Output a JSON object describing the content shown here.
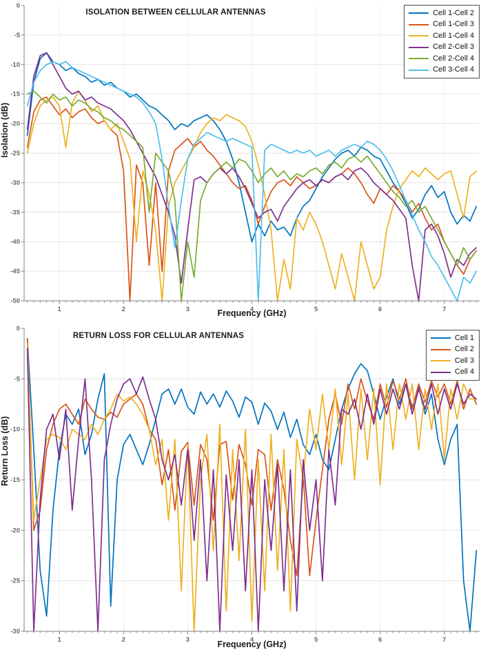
{
  "figure": {
    "background": "#ffffff",
    "axis_color": "#808080",
    "tick_label_color": "#666666",
    "grid_color_h": "#e3e3e3",
    "grid_color_v": "#ededed"
  },
  "chart_data": [
    {
      "type": "line",
      "title": "ISOLATION BETWEEN CELLULAR ANTENNAS",
      "xlabel": "Frequency (GHz)",
      "ylabel": "Isolation (dB)",
      "xlim": [
        0.45,
        7.55
      ],
      "ylim": [
        -50,
        0
      ],
      "xticks": [
        1,
        2,
        3,
        4,
        5,
        6,
        7
      ],
      "yticks": [
        0,
        -5,
        -10,
        -15,
        -20,
        -25,
        -30,
        -35,
        -40,
        -45,
        -50
      ],
      "minor_tick_step": 0.1,
      "grid": true,
      "legend_position": "top-right",
      "x_start": 0.5,
      "x_step": 0.1,
      "series": [
        {
          "name": "Cell 1-Cell 2",
          "color": "#0072BD",
          "values": [
            -22,
            -13,
            -9,
            -8,
            -9.5,
            -10,
            -11,
            -10.5,
            -11.5,
            -12,
            -13,
            -12.5,
            -13.5,
            -13,
            -14,
            -14.5,
            -15.5,
            -15,
            -16,
            -17,
            -17.5,
            -18.5,
            -19.5,
            -21,
            -20,
            -20.5,
            -19.5,
            -19,
            -18.5,
            -19.5,
            -21,
            -23,
            -26,
            -30,
            -35,
            -40,
            -37,
            -39,
            -36.5,
            -38,
            -37.5,
            -39,
            -36,
            -34,
            -33,
            -31,
            -29,
            -27.5,
            -26,
            -25,
            -24.5,
            -25.5,
            -24,
            -24.5,
            -25.5,
            -26,
            -28,
            -30,
            -31.5,
            -33.5,
            -36,
            -34.5,
            -32,
            -30.5,
            -32.5,
            -31.5,
            -35,
            -37,
            -35.5,
            -36.5,
            -34
          ]
        },
        {
          "name": "Cell 1-Cell 3",
          "color": "#D95319",
          "values": [
            -24,
            -18,
            -16,
            -15.5,
            -17,
            -18.5,
            -17.5,
            -19,
            -18,
            -17.5,
            -19,
            -20,
            -19.5,
            -21,
            -22,
            -28,
            -50,
            -27,
            -30,
            -44,
            -30,
            -45,
            -28,
            -24.5,
            -23.5,
            -22.5,
            -24,
            -23,
            -24.5,
            -25.5,
            -27,
            -28.5,
            -30,
            -31,
            -30.5,
            -33,
            -37,
            -34,
            -31.5,
            -30,
            -29.5,
            -30.5,
            -29,
            -30,
            -31,
            -30.5,
            -29.5,
            -30,
            -29,
            -28.5,
            -27.5,
            -28.5,
            -30,
            -32,
            -33.5,
            -31,
            -32,
            -30.5,
            -31.5,
            -33,
            -35,
            -33.5,
            -36,
            -38,
            -37,
            -40,
            -42,
            -44,
            -45.5,
            -43,
            -41.5
          ]
        },
        {
          "name": "Cell 1-Cell 4",
          "color": "#EDB120",
          "values": [
            -25,
            -20,
            -17,
            -16,
            -15.5,
            -17,
            -24,
            -16.5,
            -14.5,
            -16,
            -18,
            -17,
            -19.5,
            -21,
            -20,
            -23,
            -26,
            -40,
            -28,
            -32,
            -38,
            -50,
            -34,
            -30,
            -28,
            -26,
            -24,
            -21.5,
            -20,
            -19,
            -19.5,
            -18.5,
            -19,
            -19.5,
            -20.5,
            -23,
            -27,
            -32,
            -38,
            -50,
            -43,
            -48,
            -36,
            -38,
            -35,
            -37,
            -40,
            -44,
            -48,
            -42,
            -46,
            -50,
            -40,
            -44,
            -48,
            -46,
            -38,
            -34,
            -31,
            -29.5,
            -28,
            -29,
            -27.5,
            -28.5,
            -29.5,
            -28.5,
            -28,
            -32,
            -36,
            -29,
            -28
          ]
        },
        {
          "name": "Cell 2-Cell 3",
          "color": "#7E2F8E",
          "values": [
            -21,
            -12,
            -8.5,
            -8,
            -10,
            -12,
            -14,
            -15,
            -14.5,
            -16,
            -15.5,
            -16.5,
            -17,
            -17.5,
            -18.5,
            -19.5,
            -21,
            -23,
            -25,
            -27,
            -29,
            -32,
            -35,
            -39,
            -47,
            -38,
            -29.5,
            -29,
            -30,
            -28.5,
            -27.5,
            -28.5,
            -27.5,
            -29,
            -31,
            -33.5,
            -36,
            -35,
            -34.5,
            -36.5,
            -34,
            -32.5,
            -31,
            -30,
            -29.5,
            -30.5,
            -29.5,
            -30,
            -29,
            -28.5,
            -29.5,
            -28,
            -27.5,
            -28.5,
            -30,
            -31,
            -32,
            -33,
            -34.5,
            -36,
            -44,
            -50,
            -38,
            -37,
            -39,
            -42,
            -46,
            -43,
            -44,
            -42,
            -41
          ]
        },
        {
          "name": "Cell 2-Cell 4",
          "color": "#77AC30",
          "values": [
            -15,
            -14.5,
            -15.5,
            -16.5,
            -15,
            -16,
            -15.5,
            -17,
            -16,
            -16.5,
            -17.5,
            -18,
            -19,
            -19.5,
            -20.5,
            -21,
            -22,
            -23,
            -24,
            -35,
            -25,
            -26.5,
            -28,
            -33,
            -50,
            -40,
            -46,
            -33,
            -30,
            -28.5,
            -27.5,
            -26.5,
            -27.5,
            -26,
            -26.5,
            -28,
            -30,
            -28.5,
            -27.5,
            -29,
            -28,
            -29.5,
            -28.5,
            -29,
            -28,
            -27.5,
            -28.5,
            -27,
            -26.5,
            -27.5,
            -26,
            -25.5,
            -26.5,
            -25.5,
            -27,
            -28.5,
            -30,
            -31.5,
            -32.5,
            -34,
            -33,
            -35,
            -34,
            -36,
            -38,
            -40,
            -42,
            -44,
            -41,
            -43,
            -41.5
          ]
        },
        {
          "name": "Cell 3-Cell 4",
          "color": "#4DBEEE",
          "values": [
            -17,
            -13,
            -11,
            -10,
            -9.5,
            -10,
            -9.5,
            -10.5,
            -11,
            -11.5,
            -12,
            -12.5,
            -13,
            -13.5,
            -14,
            -14.5,
            -15,
            -15.5,
            -16.5,
            -18,
            -20,
            -26,
            -34,
            -41,
            -33,
            -26,
            -23.5,
            -22.5,
            -21.5,
            -22,
            -22.5,
            -23,
            -22.5,
            -23,
            -23.5,
            -24,
            -50,
            -24.5,
            -23.5,
            -24,
            -24.5,
            -25,
            -24.5,
            -25,
            -24.5,
            -25.5,
            -25,
            -24.5,
            -25.5,
            -24.5,
            -24,
            -23.5,
            -24,
            -23,
            -23.5,
            -24.5,
            -26,
            -28,
            -30.5,
            -33,
            -35.5,
            -38,
            -40,
            -42.5,
            -44,
            -46,
            -48,
            -50,
            -46,
            -47,
            -45
          ]
        }
      ]
    },
    {
      "type": "line",
      "title": "RETURN LOSS FOR CELLULAR ANTENNAS",
      "xlabel": "Frequency (GHz)",
      "ylabel": "Return Loss (dB)",
      "xlim": [
        0.45,
        7.55
      ],
      "ylim": [
        -30,
        0
      ],
      "xticks": [
        1,
        2,
        3,
        4,
        5,
        6,
        7
      ],
      "yticks": [
        0,
        -5,
        -10,
        -15,
        -20,
        -25,
        -30
      ],
      "minor_tick_step": 0.1,
      "grid": true,
      "legend_position": "top-right",
      "x_start": 0.5,
      "x_step": 0.1,
      "series": [
        {
          "name": "Cell 1",
          "color": "#0072BD",
          "values": [
            -1,
            -12,
            -24,
            -28.5,
            -18,
            -12,
            -8.5,
            -9.5,
            -8,
            -12.5,
            -10.5,
            -7,
            -4.5,
            -27.5,
            -15,
            -11.5,
            -10.5,
            -12,
            -13.5,
            -11.5,
            -9,
            -6.5,
            -6,
            -7.5,
            -6,
            -7.8,
            -8.5,
            -6.3,
            -7.5,
            -6.5,
            -7.8,
            -6.2,
            -7.2,
            -8.8,
            -6.8,
            -7.3,
            -9.5,
            -7.4,
            -8.2,
            -10,
            -8.3,
            -10.8,
            -9,
            -11.5,
            -12.5,
            -10.5,
            -13,
            -14,
            -11,
            -8,
            -6,
            -4.5,
            -3.5,
            -4.2,
            -6.5,
            -9,
            -6.8,
            -5,
            -7.5,
            -5.5,
            -7.8,
            -5.8,
            -8.5,
            -6.5,
            -11,
            -13.5,
            -11,
            -9.5,
            -25,
            -30,
            -22
          ]
        },
        {
          "name": "Cell 2",
          "color": "#D95319",
          "values": [
            -1,
            -20,
            -18,
            -12,
            -9.5,
            -8,
            -7.5,
            -8.5,
            -9.5,
            -7,
            -8,
            -8.8,
            -9,
            -8.3,
            -8.8,
            -7.5,
            -7,
            -6.5,
            -7.5,
            -10,
            -11,
            -15.5,
            -12,
            -18,
            -12.2,
            -11.3,
            -17.5,
            -11.5,
            -13,
            -19,
            -11.5,
            -11.2,
            -17,
            -11.5,
            -13.5,
            -17.5,
            -12,
            -12.5,
            -18,
            -13,
            -16,
            -21,
            -24.5,
            -14.5,
            -24.5,
            -19,
            -14,
            -9,
            -6.5,
            -9.5,
            -5.5,
            -8,
            -5,
            -7.2,
            -9,
            -5.5,
            -7.8,
            -5.2,
            -7,
            -5,
            -8,
            -5.5,
            -7.3,
            -5.2,
            -6.8,
            -5.5,
            -7.5,
            -5.2,
            -8,
            -6,
            -7.5
          ]
        },
        {
          "name": "Cell 3",
          "color": "#EDB120",
          "values": [
            -1.5,
            -19,
            -15,
            -11,
            -10.5,
            -10.8,
            -12,
            -10,
            -10.5,
            -11,
            -9.5,
            -10.5,
            -9,
            -8,
            -6.5,
            -7.2,
            -6.8,
            -7.5,
            -8.5,
            -10,
            -13.5,
            -11,
            -19,
            -11,
            -26,
            -11.5,
            -30,
            -15,
            -10.5,
            -22,
            -9.5,
            -28,
            -12,
            -23,
            -10,
            -29,
            -13,
            -26,
            -10.5,
            -24,
            -12,
            -28,
            -11,
            -15,
            -8,
            -12,
            -6.5,
            -12,
            -6,
            -13.5,
            -6.5,
            -15,
            -6,
            -13,
            -6,
            -15.5,
            -5.5,
            -12,
            -5.5,
            -9,
            -5.5,
            -12,
            -6,
            -10,
            -5.5,
            -13,
            -6,
            -9,
            -5.5,
            -7,
            -7
          ]
        },
        {
          "name": "Cell 4",
          "color": "#7E2F8E",
          "values": [
            -2,
            -30,
            -17,
            -10,
            -8.5,
            -13,
            -8,
            -18,
            -11,
            -5,
            -15,
            -30,
            -13,
            -9.5,
            -7,
            -5.5,
            -5,
            -6.5,
            -4.8,
            -7,
            -9,
            -13,
            -15,
            -12.5,
            -17.5,
            -12,
            -21,
            -13,
            -25,
            -14,
            -30,
            -14.5,
            -22,
            -13,
            -26,
            -14,
            -30,
            -15,
            -22,
            -13.5,
            -26,
            -14,
            -28,
            -13,
            -20,
            -15,
            -25,
            -12,
            -17.5,
            -8,
            -8.5,
            -7,
            -10,
            -6.5,
            -9.5,
            -6,
            -8.5,
            -6,
            -8,
            -5.5,
            -8.5,
            -6,
            -8,
            -5.5,
            -8.5,
            -6,
            -8,
            -5.5,
            -7.5,
            -6.5,
            -7
          ]
        }
      ]
    }
  ]
}
